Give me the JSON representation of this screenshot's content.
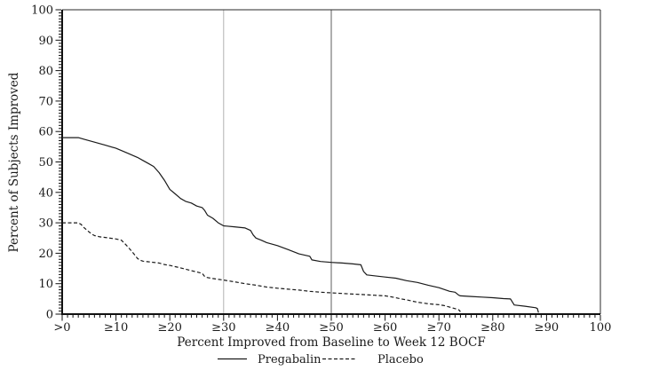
{
  "chart_data": {
    "type": "line",
    "title": "",
    "xlabel": "Percent Improved from Baseline to Week 12 BOCF",
    "ylabel": "Percent of Subjects Improved",
    "xlim": [
      0,
      100
    ],
    "ylim": [
      0,
      100
    ],
    "grid": "off",
    "frame": "box",
    "x_tick_values": [
      0,
      10,
      20,
      30,
      40,
      50,
      60,
      70,
      80,
      90,
      100
    ],
    "x_tick_labels": [
      ">0",
      "≥10",
      "≥20",
      "≥30",
      "≥40",
      "≥50",
      "≥60",
      "≥70",
      "≥80",
      "≥90",
      "100"
    ],
    "y_tick_values": [
      0,
      10,
      20,
      30,
      40,
      50,
      60,
      70,
      80,
      90,
      100
    ],
    "minor_tick_step": 1,
    "reference_lines": [
      {
        "x": 30,
        "color": "#b2b2b2"
      },
      {
        "x": 50,
        "color": "#5c5c5c"
      }
    ],
    "legend": {
      "position": "bottom-center",
      "entries": [
        "Pregabalin",
        "Placebo"
      ]
    },
    "series": [
      {
        "name": "Pregabalin",
        "style": "solid",
        "color": "#1a1a1a",
        "points": [
          [
            0,
            58
          ],
          [
            3,
            58
          ],
          [
            4,
            57.5
          ],
          [
            6,
            56.5
          ],
          [
            8,
            55.5
          ],
          [
            10,
            54.5
          ],
          [
            12,
            53
          ],
          [
            14,
            51.5
          ],
          [
            15,
            50.5
          ],
          [
            16,
            49.5
          ],
          [
            17,
            48.5
          ],
          [
            18,
            46.5
          ],
          [
            19,
            44
          ],
          [
            20,
            41
          ],
          [
            21,
            39.5
          ],
          [
            22,
            38
          ],
          [
            23,
            37
          ],
          [
            24,
            36.5
          ],
          [
            25,
            35.5
          ],
          [
            26,
            35
          ],
          [
            26.5,
            34
          ],
          [
            27,
            32.5
          ],
          [
            28,
            31.5
          ],
          [
            29,
            30
          ],
          [
            30,
            29
          ],
          [
            32,
            28.7
          ],
          [
            34,
            28.3
          ],
          [
            35,
            27.5
          ],
          [
            35.5,
            26
          ],
          [
            36,
            25
          ],
          [
            37,
            24.3
          ],
          [
            38,
            23.5
          ],
          [
            40,
            22.5
          ],
          [
            42,
            21.2
          ],
          [
            44,
            19.8
          ],
          [
            46,
            19
          ],
          [
            46.4,
            17.8
          ],
          [
            48,
            17.3
          ],
          [
            50,
            17
          ],
          [
            52,
            16.8
          ],
          [
            54,
            16.5
          ],
          [
            55.5,
            16.2
          ],
          [
            56,
            14
          ],
          [
            56.6,
            12.9
          ],
          [
            58,
            12.6
          ],
          [
            60,
            12.2
          ],
          [
            62,
            11.8
          ],
          [
            64,
            11
          ],
          [
            66,
            10.4
          ],
          [
            68,
            9.5
          ],
          [
            70,
            8.7
          ],
          [
            72,
            7.5
          ],
          [
            73,
            7.2
          ],
          [
            73.7,
            6.2
          ],
          [
            74,
            6
          ],
          [
            76,
            5.8
          ],
          [
            78,
            5.6
          ],
          [
            80,
            5.4
          ],
          [
            82,
            5.1
          ],
          [
            83.3,
            5
          ],
          [
            84,
            3
          ],
          [
            86,
            2.6
          ],
          [
            88,
            2.1
          ],
          [
            88.3,
            1.8
          ],
          [
            88.5,
            0.5
          ]
        ]
      },
      {
        "name": "Placebo",
        "style": "dashed",
        "color": "#1a1a1a",
        "points": [
          [
            0,
            30
          ],
          [
            3,
            30
          ],
          [
            3.5,
            29.5
          ],
          [
            4,
            28.5
          ],
          [
            5,
            27
          ],
          [
            5.5,
            26.3
          ],
          [
            6,
            25.8
          ],
          [
            7,
            25.4
          ],
          [
            8,
            25.2
          ],
          [
            10,
            24.7
          ],
          [
            11,
            24.3
          ],
          [
            12,
            22.5
          ],
          [
            13,
            20.5
          ],
          [
            14,
            18.3
          ],
          [
            14.5,
            17.7
          ],
          [
            15,
            17.4
          ],
          [
            16,
            17.2
          ],
          [
            18,
            16.8
          ],
          [
            19,
            16.3
          ],
          [
            20,
            16
          ],
          [
            22,
            15.2
          ],
          [
            24,
            14.3
          ],
          [
            26,
            13.4
          ],
          [
            26.5,
            12.3
          ],
          [
            27,
            12
          ],
          [
            28,
            11.7
          ],
          [
            30,
            11.2
          ],
          [
            32,
            10.6
          ],
          [
            34,
            10
          ],
          [
            36,
            9.5
          ],
          [
            38,
            8.9
          ],
          [
            40,
            8.5
          ],
          [
            42,
            8.2
          ],
          [
            44,
            7.9
          ],
          [
            46,
            7.5
          ],
          [
            48,
            7.2
          ],
          [
            50,
            7
          ],
          [
            52,
            6.8
          ],
          [
            54,
            6.6
          ],
          [
            56,
            6.4
          ],
          [
            58,
            6.2
          ],
          [
            60,
            6
          ],
          [
            61,
            5.7
          ],
          [
            62,
            5.4
          ],
          [
            63,
            5
          ],
          [
            64,
            4.7
          ],
          [
            65,
            4.3
          ],
          [
            66,
            3.9
          ],
          [
            68,
            3.4
          ],
          [
            70,
            3.1
          ],
          [
            71,
            2.8
          ],
          [
            72,
            2.3
          ],
          [
            73,
            1.8
          ],
          [
            73.7,
            1.4
          ],
          [
            74,
            0.8
          ]
        ]
      }
    ]
  }
}
